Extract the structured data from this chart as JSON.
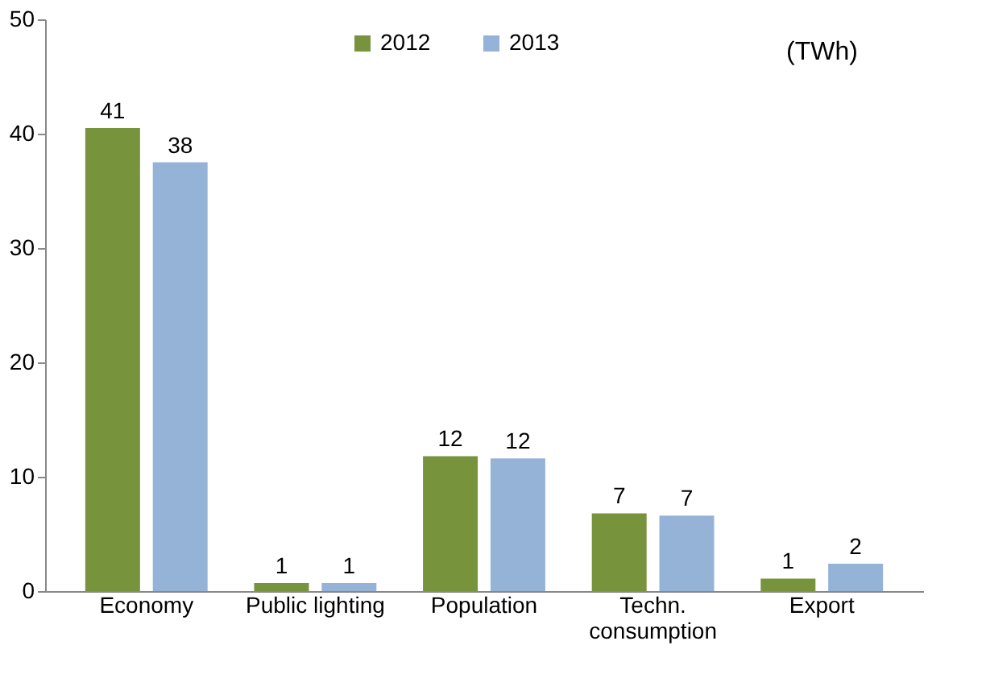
{
  "chart_data": {
    "type": "bar",
    "categories": [
      "Economy",
      "Public lighting",
      "Population",
      "Techn.\nconsumption",
      "Export"
    ],
    "series": [
      {
        "name": "2012",
        "color": "#77933c",
        "values": [
          40.5,
          0.7,
          11.8,
          6.8,
          1.1
        ],
        "value_labels": [
          "41",
          "1",
          "12",
          "7",
          "1"
        ]
      },
      {
        "name": "2013",
        "color": "#95b3d7",
        "values": [
          37.5,
          0.7,
          11.6,
          6.6,
          2.4
        ],
        "value_labels": [
          "38",
          "1",
          "12",
          "7",
          "2"
        ]
      }
    ],
    "ylim": [
      0,
      50
    ],
    "yticks": [
      0,
      10,
      20,
      30,
      40,
      50
    ],
    "grid": false,
    "legend": "top",
    "annotations": [
      "(TWh)"
    ]
  }
}
